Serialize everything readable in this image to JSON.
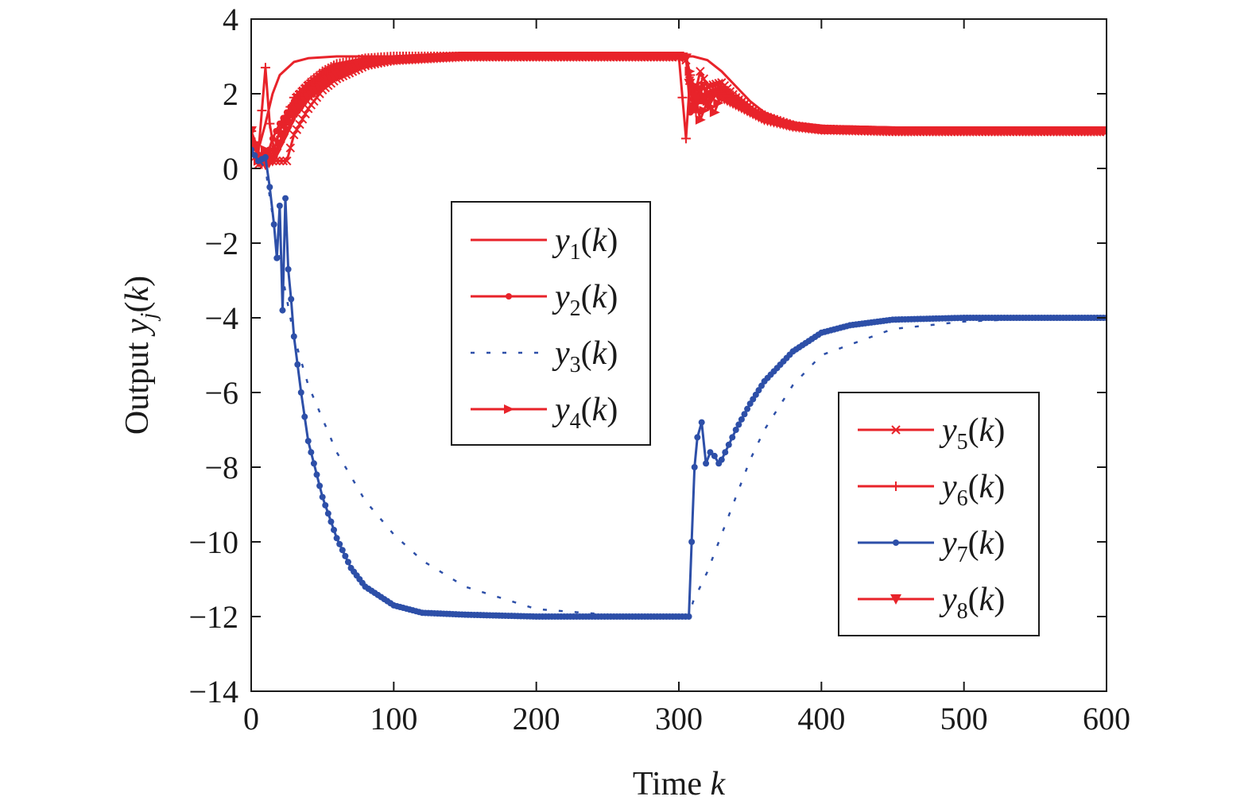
{
  "chart_data": {
    "type": "line",
    "xlabel": "Time k",
    "xlabel_parts": {
      "text": "Time ",
      "var": "k"
    },
    "ylabel": "Output yj(k)",
    "ylabel_parts": {
      "text": "Output ",
      "var": "y",
      "sub": "j",
      "open": "(",
      "arg": "k",
      "close": ")"
    },
    "xlim": [
      0,
      600
    ],
    "ylim": [
      -14,
      4
    ],
    "xticks": [
      0,
      100,
      200,
      300,
      400,
      500,
      600
    ],
    "yticks": [
      4,
      2,
      0,
      -2,
      -4,
      -6,
      -8,
      -10,
      -12,
      -14
    ],
    "ytick_labels": [
      "4",
      "2",
      "0",
      "−2",
      "−4",
      "−6",
      "−8",
      "−10",
      "−12",
      "−14"
    ],
    "grid": false,
    "legend_placement": [
      "center",
      "lower-right"
    ],
    "colors": {
      "red": "#e8232a",
      "blue": "#2d4fa8"
    },
    "series": [
      {
        "name": "y1(k)",
        "var": "y",
        "sub": "1",
        "arg": "k",
        "color": "#e8232a",
        "style": "solid",
        "marker": "none",
        "x": [
          0,
          5,
          10,
          15,
          20,
          30,
          40,
          60,
          80,
          100,
          150,
          200,
          250,
          300,
          305,
          310,
          320,
          330,
          340,
          350,
          360,
          380,
          400,
          450,
          500,
          550,
          600
        ],
        "y": [
          1.0,
          0.5,
          1.2,
          2.0,
          2.5,
          2.85,
          2.95,
          3.0,
          3.0,
          3.0,
          3.0,
          3.0,
          3.0,
          3.0,
          3.0,
          3.0,
          2.9,
          2.6,
          2.2,
          1.8,
          1.5,
          1.2,
          1.05,
          1.0,
          1.0,
          1.0,
          1.0
        ]
      },
      {
        "name": "y2(k)",
        "var": "y",
        "sub": "2",
        "arg": "k",
        "color": "#e8232a",
        "style": "solid",
        "marker": "dot",
        "x": [
          0,
          5,
          10,
          15,
          20,
          25,
          30,
          40,
          50,
          60,
          80,
          100,
          150,
          200,
          250,
          300,
          305,
          308,
          312,
          316,
          320,
          330,
          340,
          350,
          360,
          380,
          400,
          450,
          500,
          550,
          600
        ],
        "y": [
          0.8,
          0.3,
          0.2,
          0.8,
          1.2,
          1.5,
          1.8,
          2.2,
          2.5,
          2.7,
          2.9,
          2.95,
          3.0,
          3.0,
          3.0,
          3.0,
          3.0,
          1.5,
          2.2,
          1.8,
          2.0,
          2.1,
          1.8,
          1.5,
          1.3,
          1.1,
          1.0,
          1.0,
          1.0,
          1.0,
          1.0
        ]
      },
      {
        "name": "y3(k)",
        "var": "y",
        "sub": "3",
        "arg": "k",
        "color": "#2d4fa8",
        "style": "dotted",
        "marker": "none",
        "x": [
          0,
          10,
          20,
          30,
          40,
          60,
          80,
          100,
          120,
          150,
          200,
          250,
          300,
          307,
          310,
          320,
          330,
          340,
          350,
          360,
          380,
          400,
          450,
          500,
          550,
          600
        ],
        "y": [
          0.5,
          0.0,
          -2.5,
          -4.5,
          -5.8,
          -7.6,
          -8.9,
          -9.8,
          -10.5,
          -11.2,
          -11.8,
          -11.95,
          -12.0,
          -12.0,
          -11.6,
          -10.8,
          -9.8,
          -8.8,
          -7.8,
          -7.0,
          -5.8,
          -5.0,
          -4.3,
          -4.1,
          -4.02,
          -4.0
        ]
      },
      {
        "name": "y4(k)",
        "var": "y",
        "sub": "4",
        "arg": "k",
        "color": "#e8232a",
        "style": "solid",
        "marker": "triangle-right",
        "x": [
          0,
          5,
          10,
          15,
          20,
          25,
          30,
          40,
          50,
          60,
          80,
          100,
          150,
          200,
          250,
          300,
          305,
          310,
          315,
          320,
          325,
          330,
          340,
          350,
          360,
          380,
          400,
          450,
          500,
          550,
          600
        ],
        "y": [
          1.0,
          0.2,
          0.5,
          0.3,
          0.7,
          1.2,
          1.6,
          2.0,
          2.3,
          2.5,
          2.8,
          2.9,
          3.0,
          3.0,
          3.0,
          3.0,
          3.0,
          2.2,
          1.3,
          1.8,
          1.5,
          2.0,
          1.9,
          1.6,
          1.4,
          1.15,
          1.05,
          1.0,
          1.0,
          1.0,
          1.0
        ]
      },
      {
        "name": "y5(k)",
        "var": "y",
        "sub": "5",
        "arg": "k",
        "color": "#e8232a",
        "style": "solid",
        "marker": "x",
        "x": [
          0,
          5,
          10,
          15,
          20,
          25,
          30,
          40,
          50,
          60,
          80,
          100,
          150,
          200,
          250,
          300,
          305,
          310,
          315,
          320,
          330,
          340,
          350,
          360,
          380,
          400,
          450,
          500,
          550,
          600
        ],
        "y": [
          0.5,
          0.1,
          0.2,
          0.2,
          0.2,
          0.2,
          0.9,
          1.6,
          2.1,
          2.4,
          2.75,
          2.9,
          3.0,
          3.0,
          3.0,
          3.0,
          2.9,
          1.8,
          2.6,
          2.2,
          2.3,
          1.9,
          1.6,
          1.4,
          1.15,
          1.05,
          1.0,
          1.0,
          1.0,
          1.0
        ]
      },
      {
        "name": "y6(k)",
        "var": "y",
        "sub": "6",
        "arg": "k",
        "color": "#e8232a",
        "style": "solid",
        "marker": "plus",
        "x": [
          0,
          5,
          10,
          13,
          16,
          20,
          25,
          30,
          40,
          50,
          60,
          80,
          100,
          150,
          200,
          250,
          300,
          305,
          308,
          312,
          316,
          320,
          330,
          340,
          350,
          360,
          380,
          400,
          450,
          500,
          550,
          600
        ],
        "y": [
          1.0,
          0.4,
          2.7,
          1.2,
          0.5,
          1.0,
          1.4,
          1.9,
          2.3,
          2.6,
          2.8,
          2.95,
          3.0,
          3.0,
          3.0,
          3.0,
          3.0,
          0.8,
          2.5,
          1.5,
          2.3,
          2.0,
          2.2,
          1.9,
          1.6,
          1.4,
          1.15,
          1.05,
          1.0,
          1.0,
          1.0,
          1.0
        ]
      },
      {
        "name": "y7(k)",
        "var": "y",
        "sub": "7",
        "arg": "k",
        "color": "#2d4fa8",
        "style": "solid",
        "marker": "dot",
        "x": [
          0,
          5,
          10,
          13,
          16,
          18,
          20,
          22,
          24,
          26,
          28,
          30,
          35,
          40,
          50,
          60,
          70,
          80,
          100,
          120,
          150,
          200,
          250,
          300,
          307,
          309,
          311,
          313,
          316,
          319,
          322,
          325,
          328,
          330,
          335,
          340,
          350,
          360,
          380,
          400,
          420,
          450,
          500,
          550,
          600
        ],
        "y": [
          0.5,
          0.2,
          0.3,
          -0.5,
          -1.5,
          -2.4,
          -1.0,
          -3.8,
          -0.8,
          -2.7,
          -3.5,
          -4.5,
          -6.0,
          -7.3,
          -8.8,
          -9.9,
          -10.7,
          -11.2,
          -11.7,
          -11.9,
          -11.95,
          -12.0,
          -12.0,
          -12.0,
          -12.0,
          -10.0,
          -8.0,
          -7.2,
          -6.8,
          -7.9,
          -7.6,
          -7.7,
          -7.9,
          -7.8,
          -7.4,
          -7.0,
          -6.3,
          -5.7,
          -4.9,
          -4.4,
          -4.2,
          -4.05,
          -4.0,
          -4.0,
          -4.0
        ]
      },
      {
        "name": "y8(k)",
        "var": "y",
        "sub": "8",
        "arg": "k",
        "color": "#e8232a",
        "style": "solid",
        "marker": "triangle-down",
        "x": [
          0,
          5,
          10,
          15,
          20,
          25,
          30,
          40,
          50,
          60,
          80,
          100,
          150,
          200,
          250,
          300,
          305,
          310,
          315,
          320,
          325,
          330,
          340,
          350,
          360,
          380,
          400,
          450,
          500,
          550,
          600
        ],
        "y": [
          1.0,
          0.2,
          0.1,
          0.2,
          0.6,
          1.0,
          1.4,
          1.9,
          2.2,
          2.5,
          2.8,
          2.9,
          3.0,
          3.0,
          3.0,
          3.0,
          2.95,
          1.6,
          2.1,
          1.7,
          2.0,
          1.9,
          1.7,
          1.5,
          1.3,
          1.12,
          1.04,
          1.0,
          1.0,
          1.0,
          1.0
        ]
      }
    ],
    "legends": [
      {
        "placement": "center",
        "series_index": [
          0,
          1,
          2,
          3
        ]
      },
      {
        "placement": "lower-right",
        "series_index": [
          4,
          5,
          6,
          7
        ]
      }
    ]
  }
}
